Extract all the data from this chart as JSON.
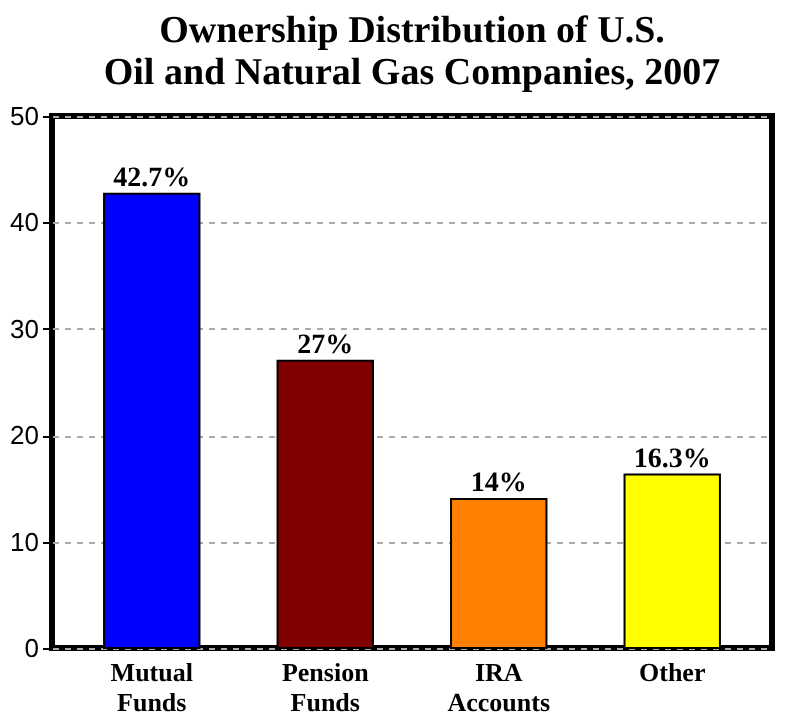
{
  "chart_data": {
    "type": "bar",
    "title": [
      "Ownership Distribution of U.S.",
      "Oil and Natural Gas Companies, 2007"
    ],
    "categories": [
      "Mutual Funds",
      "Pension Funds",
      "IRA Accounts",
      "Other"
    ],
    "values": [
      42.7,
      27,
      14,
      16.3
    ],
    "colors": [
      "#0000ff",
      "#800000",
      "#ff8000",
      "#ffff00"
    ],
    "value_labels": [
      "42.7%",
      "27%",
      "14%",
      "16.3%"
    ],
    "ylim": [
      0,
      50
    ],
    "yticks": [
      0,
      10,
      20,
      30,
      40,
      50
    ],
    "grid": "y"
  }
}
